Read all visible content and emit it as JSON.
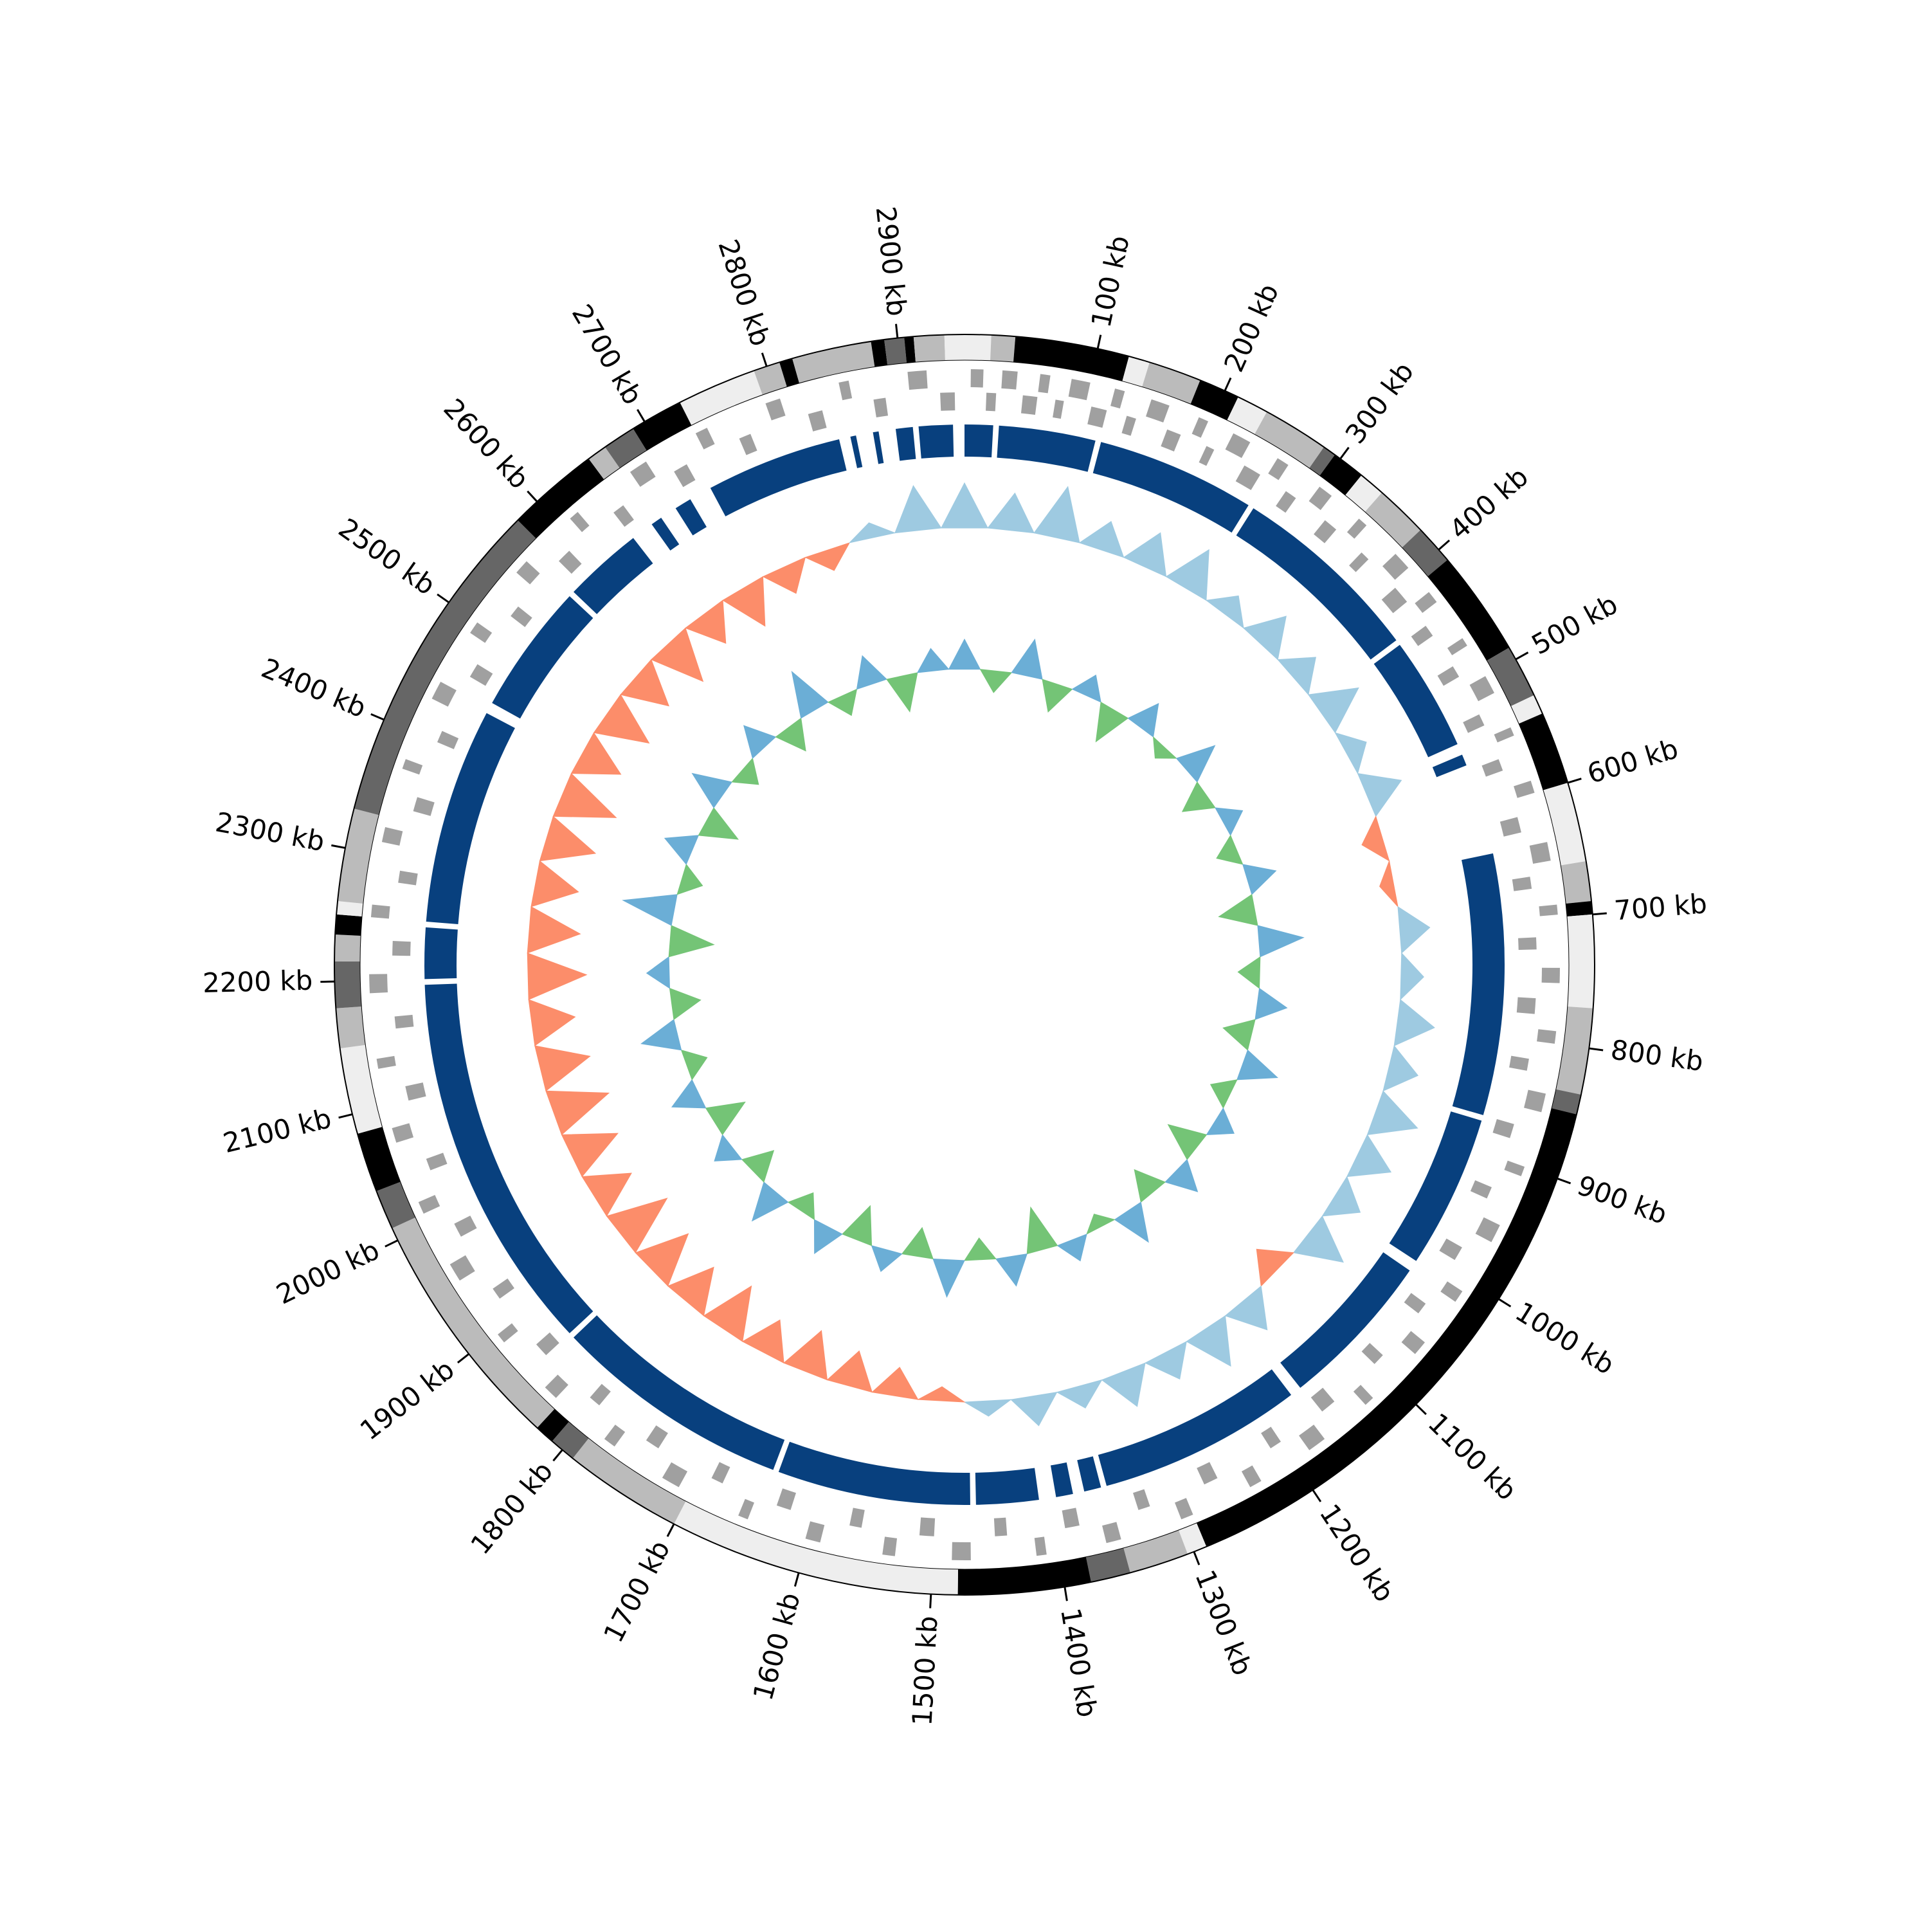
{
  "chart_data": {
    "type": "circular-genome",
    "xlim": [
      0,
      2950
    ],
    "xticks": [
      {
        "value": 100,
        "label": "100 kb"
      },
      {
        "value": 200,
        "label": "200 kb"
      },
      {
        "value": 300,
        "label": "300 kb"
      },
      {
        "value": 400,
        "label": "400 kb"
      },
      {
        "value": 500,
        "label": "500 kb"
      },
      {
        "value": 600,
        "label": "600 kb"
      },
      {
        "value": 700,
        "label": "700 kb"
      },
      {
        "value": 800,
        "label": "800 kb"
      },
      {
        "value": 900,
        "label": "900 kb"
      },
      {
        "value": 1000,
        "label": "1000 kb"
      },
      {
        "value": 1100,
        "label": "1100 kb"
      },
      {
        "value": 1200,
        "label": "1200 kb"
      },
      {
        "value": 1300,
        "label": "1300 kb"
      },
      {
        "value": 1400,
        "label": "1400 kb"
      },
      {
        "value": 1500,
        "label": "1500 kb"
      },
      {
        "value": 1600,
        "label": "1600 kb"
      },
      {
        "value": 1700,
        "label": "1700 kb"
      },
      {
        "value": 1800,
        "label": "1800 kb"
      },
      {
        "value": 1900,
        "label": "1900 kb"
      },
      {
        "value": 2000,
        "label": "2000 kb"
      },
      {
        "value": 2100,
        "label": "2100 kb"
      },
      {
        "value": 2200,
        "label": "2200 kb"
      },
      {
        "value": 2300,
        "label": "2300 kb"
      },
      {
        "value": 2400,
        "label": "2400 kb"
      },
      {
        "value": 2500,
        "label": "2500 kb"
      },
      {
        "value": 2600,
        "label": "2600 kb"
      },
      {
        "value": 2700,
        "label": "2700 kb"
      },
      {
        "value": 2800,
        "label": "2800 kb"
      },
      {
        "value": 2900,
        "label": "2900 kb"
      }
    ],
    "bands": [
      {
        "start": 0,
        "end": 20,
        "color": "#eeeeee"
      },
      {
        "start": 20,
        "end": 38,
        "color": "#bbbbbb"
      },
      {
        "start": 38,
        "end": 124,
        "color": "#000000"
      },
      {
        "start": 124,
        "end": 140,
        "color": "#eeeeee"
      },
      {
        "start": 140,
        "end": 180,
        "color": "#bbbbbb"
      },
      {
        "start": 180,
        "end": 211,
        "color": "#000000"
      },
      {
        "start": 211,
        "end": 235,
        "color": "#eeeeee"
      },
      {
        "start": 235,
        "end": 285,
        "color": "#bbbbbb"
      },
      {
        "start": 285,
        "end": 295,
        "color": "#666666"
      },
      {
        "start": 295,
        "end": 320,
        "color": "#000000"
      },
      {
        "start": 320,
        "end": 340,
        "color": "#eeeeee"
      },
      {
        "start": 340,
        "end": 380,
        "color": "#bbbbbb"
      },
      {
        "start": 380,
        "end": 410,
        "color": "#666666"
      },
      {
        "start": 410,
        "end": 490,
        "color": "#000000"
      },
      {
        "start": 490,
        "end": 530,
        "color": "#666666"
      },
      {
        "start": 530,
        "end": 545,
        "color": "#eeeeee"
      },
      {
        "start": 545,
        "end": 600,
        "color": "#000000"
      },
      {
        "start": 600,
        "end": 660,
        "color": "#eeeeee"
      },
      {
        "start": 660,
        "end": 690,
        "color": "#bbbbbb"
      },
      {
        "start": 690,
        "end": 700,
        "color": "#000000"
      },
      {
        "start": 700,
        "end": 770,
        "color": "#eeeeee"
      },
      {
        "start": 770,
        "end": 835,
        "color": "#bbbbbb"
      },
      {
        "start": 835,
        "end": 850,
        "color": "#666666"
      },
      {
        "start": 850,
        "end": 1290,
        "color": "#000000"
      },
      {
        "start": 1290,
        "end": 1305,
        "color": "#eeeeee"
      },
      {
        "start": 1305,
        "end": 1350,
        "color": "#bbbbbb"
      },
      {
        "start": 1350,
        "end": 1380,
        "color": "#666666"
      },
      {
        "start": 1380,
        "end": 1480,
        "color": "#000000"
      },
      {
        "start": 1480,
        "end": 1700,
        "color": "#eeeeee"
      },
      {
        "start": 1700,
        "end": 1790,
        "color": "#bbbbbb"
      },
      {
        "start": 1790,
        "end": 1810,
        "color": "#666666"
      },
      {
        "start": 1810,
        "end": 1825,
        "color": "#000000"
      },
      {
        "start": 1825,
        "end": 2010,
        "color": "#bbbbbb"
      },
      {
        "start": 2010,
        "end": 2040,
        "color": "#666666"
      },
      {
        "start": 2040,
        "end": 2085,
        "color": "#000000"
      },
      {
        "start": 2085,
        "end": 2150,
        "color": "#eeeeee"
      },
      {
        "start": 2150,
        "end": 2180,
        "color": "#bbbbbb"
      },
      {
        "start": 2180,
        "end": 2215,
        "color": "#666666"
      },
      {
        "start": 2215,
        "end": 2235,
        "color": "#bbbbbb"
      },
      {
        "start": 2235,
        "end": 2250,
        "color": "#000000"
      },
      {
        "start": 2250,
        "end": 2260,
        "color": "#eeeeee"
      },
      {
        "start": 2260,
        "end": 2330,
        "color": "#bbbbbb"
      },
      {
        "start": 2330,
        "end": 2580,
        "color": "#666666"
      },
      {
        "start": 2580,
        "end": 2650,
        "color": "#000000"
      },
      {
        "start": 2650,
        "end": 2665,
        "color": "#bbbbbb"
      },
      {
        "start": 2665,
        "end": 2690,
        "color": "#666666"
      },
      {
        "start": 2690,
        "end": 2730,
        "color": "#000000"
      },
      {
        "start": 2730,
        "end": 2790,
        "color": "#eeeeee"
      },
      {
        "start": 2790,
        "end": 2810,
        "color": "#bbbbbb"
      },
      {
        "start": 2810,
        "end": 2820,
        "color": "#000000"
      },
      {
        "start": 2820,
        "end": 2880,
        "color": "#bbbbbb"
      },
      {
        "start": 2880,
        "end": 2890,
        "color": "#000000"
      },
      {
        "start": 2890,
        "end": 2905,
        "color": "#666666"
      },
      {
        "start": 2905,
        "end": 2912,
        "color": "#000000"
      },
      {
        "start": 2912,
        "end": 2935,
        "color": "#bbbbbb"
      },
      {
        "start": 2935,
        "end": 2950,
        "color": "#eeeeee"
      }
    ],
    "gene_color": "#a0a0a0",
    "genes_forward": [
      [
        5,
        15
      ],
      [
        30,
        42
      ],
      [
        60,
        68
      ],
      [
        85,
        100
      ],
      [
        120,
        128
      ],
      [
        150,
        165
      ],
      [
        190,
        198
      ],
      [
        220,
        235
      ],
      [
        260,
        270
      ],
      [
        300,
        312
      ],
      [
        340,
        348
      ],
      [
        380,
        395
      ],
      [
        420,
        430
      ],
      [
        465,
        472
      ],
      [
        500,
        515
      ],
      [
        545,
        552
      ],
      [
        590,
        600
      ],
      [
        640,
        655
      ],
      [
        690,
        698
      ],
      [
        740,
        752
      ],
      [
        790,
        800
      ],
      [
        840,
        855
      ],
      [
        900,
        908
      ],
      [
        950,
        965
      ],
      [
        1010,
        1020
      ],
      [
        1060,
        1072
      ],
      [
        1120,
        1128
      ],
      [
        1170,
        1185
      ],
      [
        1230,
        1240
      ],
      [
        1290,
        1300
      ],
      [
        1350,
        1362
      ],
      [
        1410,
        1418
      ],
      [
        1470,
        1485
      ],
      [
        1530,
        1540
      ],
      [
        1590,
        1602
      ],
      [
        1650,
        1658
      ],
      [
        1710,
        1725
      ],
      [
        1770,
        1780
      ],
      [
        1830,
        1842
      ],
      [
        1890,
        1898
      ],
      [
        1950,
        1965
      ],
      [
        2010,
        2020
      ],
      [
        2070,
        2082
      ],
      [
        2130,
        2138
      ],
      [
        2190,
        2205
      ],
      [
        2250,
        2260
      ],
      [
        2310,
        2322
      ],
      [
        2370,
        2378
      ],
      [
        2430,
        2445
      ],
      [
        2490,
        2500
      ],
      [
        2550,
        2562
      ],
      [
        2610,
        2618
      ],
      [
        2670,
        2685
      ],
      [
        2730,
        2740
      ],
      [
        2790,
        2802
      ],
      [
        2850,
        2858
      ],
      [
        2905,
        2920
      ]
    ],
    "genes_reverse": [
      [
        18,
        26
      ],
      [
        48,
        60
      ],
      [
        75,
        82
      ],
      [
        105,
        118
      ],
      [
        135,
        143
      ],
      [
        170,
        182
      ],
      [
        205,
        212
      ],
      [
        240,
        255
      ],
      [
        280,
        290
      ],
      [
        320,
        332
      ],
      [
        360,
        368
      ],
      [
        400,
        415
      ],
      [
        440,
        450
      ],
      [
        480,
        490
      ],
      [
        525,
        535
      ],
      [
        565,
        575
      ],
      [
        615,
        628
      ],
      [
        665,
        675
      ],
      [
        715,
        725
      ],
      [
        765,
        778
      ],
      [
        815,
        825
      ],
      [
        870,
        882
      ],
      [
        925,
        935
      ],
      [
        980,
        992
      ],
      [
        1035,
        1045
      ],
      [
        1090,
        1100
      ],
      [
        1145,
        1158
      ],
      [
        1200,
        1210
      ],
      [
        1260,
        1272
      ],
      [
        1320,
        1330
      ],
      [
        1380,
        1392
      ],
      [
        1440,
        1450
      ],
      [
        1500,
        1512
      ],
      [
        1560,
        1570
      ],
      [
        1620,
        1632
      ],
      [
        1680,
        1690
      ],
      [
        1740,
        1752
      ],
      [
        1800,
        1810
      ],
      [
        1860,
        1872
      ],
      [
        1920,
        1930
      ],
      [
        1980,
        1992
      ],
      [
        2040,
        2050
      ],
      [
        2100,
        2112
      ],
      [
        2160,
        2170
      ],
      [
        2220,
        2232
      ],
      [
        2280,
        2290
      ],
      [
        2340,
        2352
      ],
      [
        2400,
        2410
      ],
      [
        2460,
        2472
      ],
      [
        2520,
        2530
      ],
      [
        2580,
        2592
      ],
      [
        2640,
        2650
      ],
      [
        2700,
        2712
      ],
      [
        2760,
        2770
      ],
      [
        2820,
        2832
      ],
      [
        2875,
        2885
      ],
      [
        2930,
        2942
      ]
    ],
    "block_color": "#08407e",
    "blocks": [
      [
        0,
        25
      ],
      [
        30,
        115
      ],
      [
        120,
        260
      ],
      [
        265,
        435
      ],
      [
        440,
        540
      ],
      [
        550,
        560
      ],
      [
        640,
        870
      ],
      [
        875,
        1010
      ],
      [
        1020,
        1160
      ],
      [
        1170,
        1350
      ],
      [
        1355,
        1370
      ],
      [
        1380,
        1395
      ],
      [
        1410,
        1465
      ],
      [
        1470,
        1640
      ],
      [
        1645,
        1855
      ],
      [
        1860,
        2195
      ],
      [
        2200,
        2245
      ],
      [
        2250,
        2440
      ],
      [
        2450,
        2565
      ],
      [
        2570,
        2640
      ],
      [
        2660,
        2670
      ],
      [
        2685,
        2700
      ],
      [
        2720,
        2840
      ],
      [
        2850,
        2855
      ],
      [
        2870,
        2875
      ],
      [
        2890,
        2905
      ],
      [
        2910,
        2940
      ]
    ],
    "x": [
      0,
      50,
      100,
      150,
      200,
      250,
      300,
      350,
      400,
      450,
      500,
      550,
      600,
      650,
      700,
      750,
      800,
      850,
      900,
      950,
      1000,
      1050,
      1100,
      1150,
      1200,
      1250,
      1300,
      1350,
      1400,
      1450,
      1500,
      1550,
      1600,
      1650,
      1700,
      1750,
      1800,
      1850,
      1900,
      1950,
      2000,
      2050,
      2100,
      2150,
      2200,
      2250,
      2300,
      2350,
      2400,
      2450,
      2500,
      2550,
      2600,
      2650,
      2700,
      2750,
      2800,
      2850,
      2900
    ],
    "tracks": [
      {
        "ylim": [
          -0.1,
          0.1
        ],
        "colors": [
          "#9ecae1",
          "#fc8d6a"
        ],
        "values": [
          0.06,
          0.05,
          0.07,
          0.04,
          0.05,
          0.06,
          0.03,
          0.05,
          0.04,
          0.06,
          0.03,
          0.05,
          -0.03,
          -0.02,
          0.04,
          0.03,
          0.05,
          0.04,
          0.06,
          0.05,
          0.04,
          0.06,
          -0.04,
          0.05,
          0.06,
          0.04,
          0.05,
          0.03,
          0.04,
          0.02,
          -0.02,
          -0.04,
          -0.05,
          -0.06,
          -0.05,
          -0.07,
          -0.06,
          -0.07,
          -0.08,
          -0.06,
          -0.07,
          -0.08,
          -0.07,
          -0.06,
          -0.08,
          -0.07,
          -0.06,
          -0.07,
          -0.08,
          -0.06,
          -0.07,
          -0.06,
          -0.07,
          -0.05,
          -0.06,
          -0.04,
          -0.03,
          0.02,
          0.06
        ]
      },
      {
        "ylim": [
          -0.1,
          0.1
        ],
        "colors": [
          "#6baed6",
          "#74c476"
        ],
        "values": [
          0.04,
          -0.03,
          0.05,
          -0.04,
          0.03,
          -0.05,
          0.04,
          -0.02,
          0.05,
          -0.04,
          0.03,
          -0.03,
          0.04,
          -0.05,
          0.06,
          -0.03,
          0.04,
          -0.04,
          0.05,
          -0.03,
          0.03,
          -0.05,
          0.04,
          -0.04,
          0.05,
          -0.02,
          0.03,
          -0.06,
          0.04,
          -0.03,
          0.05,
          -0.04,
          0.03,
          -0.05,
          0.04,
          -0.03,
          0.05,
          -0.04,
          0.03,
          -0.05,
          0.04,
          -0.03,
          0.05,
          -0.04,
          0.03,
          -0.06,
          0.07,
          -0.03,
          0.04,
          -0.05,
          0.05,
          -0.03,
          0.04,
          -0.04,
          0.06,
          -0.03,
          0.04,
          -0.05,
          0.03
        ]
      }
    ]
  }
}
